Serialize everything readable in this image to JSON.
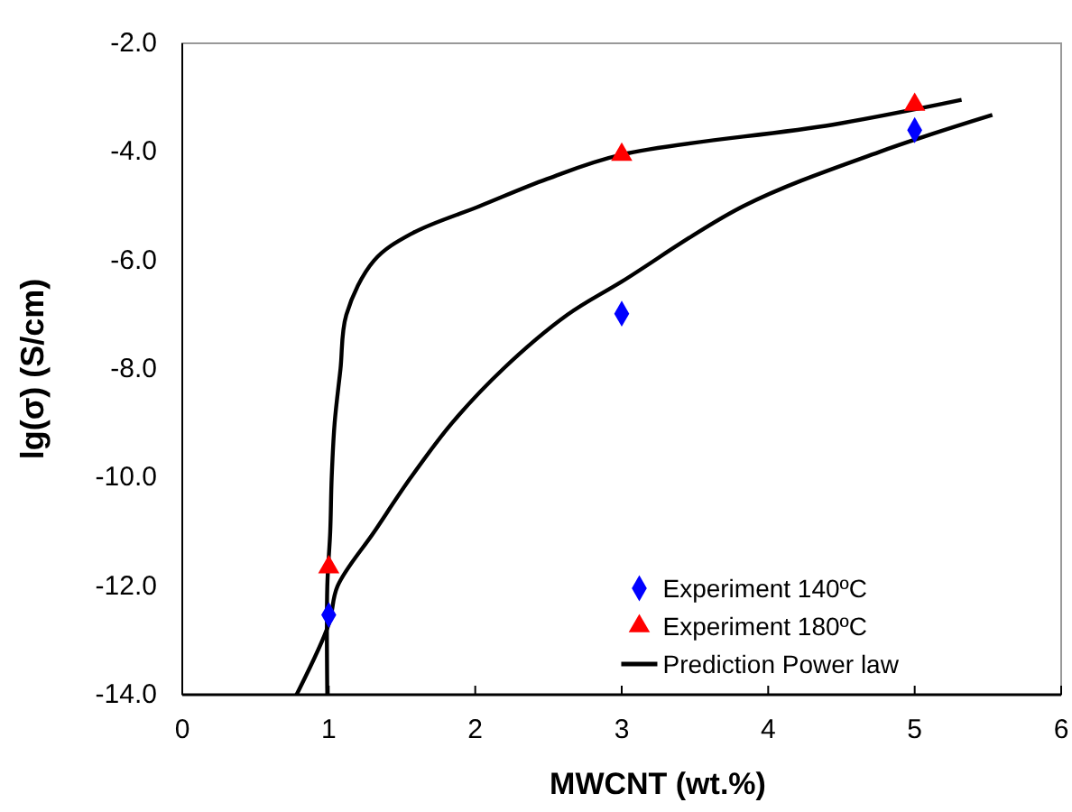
{
  "chart_data": {
    "type": "scatter",
    "xlabel": "MWCNT (wt.%)",
    "ylabel": "lg(σ) (S/cm)",
    "xlim": [
      0,
      6
    ],
    "xticks": [
      0,
      1,
      2,
      3,
      4,
      5,
      6
    ],
    "ylim": [
      -14,
      -2
    ],
    "yticks": [
      {
        "value": -14,
        "label": "-14.0"
      },
      {
        "value": -12,
        "label": "-12.0"
      },
      {
        "value": -10,
        "label": "-10.0"
      },
      {
        "value": -8,
        "label": "-8.0"
      },
      {
        "value": -6,
        "label": "-6.0"
      },
      {
        "value": -4,
        "label": "-4.0"
      },
      {
        "value": -2,
        "label": "-2.0"
      }
    ],
    "grid": false,
    "legend": "bottom right",
    "series": [
      {
        "name": "Experiment 140ºC",
        "type": "scatter",
        "marker": "diamond",
        "color": "#0000ff",
        "x": [
          1,
          3,
          5
        ],
        "values": [
          -12.53,
          -6.98,
          -3.6
        ]
      },
      {
        "name": "Experiment 180ºC",
        "type": "scatter",
        "marker": "triangle",
        "color": "#ff0000",
        "x": [
          1,
          3,
          5
        ],
        "values": [
          -11.65,
          -4.05,
          -3.13
        ]
      },
      {
        "name": "Prediction Power law",
        "type": "line",
        "marker": "none",
        "color": "#000000",
        "x": [
          0.99,
          0.99,
          1.01,
          1.02,
          1.04,
          1.08,
          1.12,
          1.31,
          1.57,
          2.03,
          2.49,
          3,
          4.44,
          5.32
        ],
        "values": [
          -14,
          -12,
          -11,
          -10,
          -9,
          -8,
          -7,
          -6,
          -5.5,
          -5,
          -4.5,
          -4.05,
          -3.5,
          -3.04
        ]
      },
      {
        "type": "line",
        "marker": "none",
        "color": "#000000",
        "x": [
          0.78,
          1,
          1.06,
          1.31,
          1.56,
          1.84,
          2.19,
          2.63,
          3,
          3.83,
          4.76,
          5.53
        ],
        "values": [
          -14,
          -12.7,
          -12,
          -11,
          -10,
          -9,
          -8,
          -7,
          -6.39,
          -5,
          -4,
          -3.32
        ]
      }
    ]
  }
}
